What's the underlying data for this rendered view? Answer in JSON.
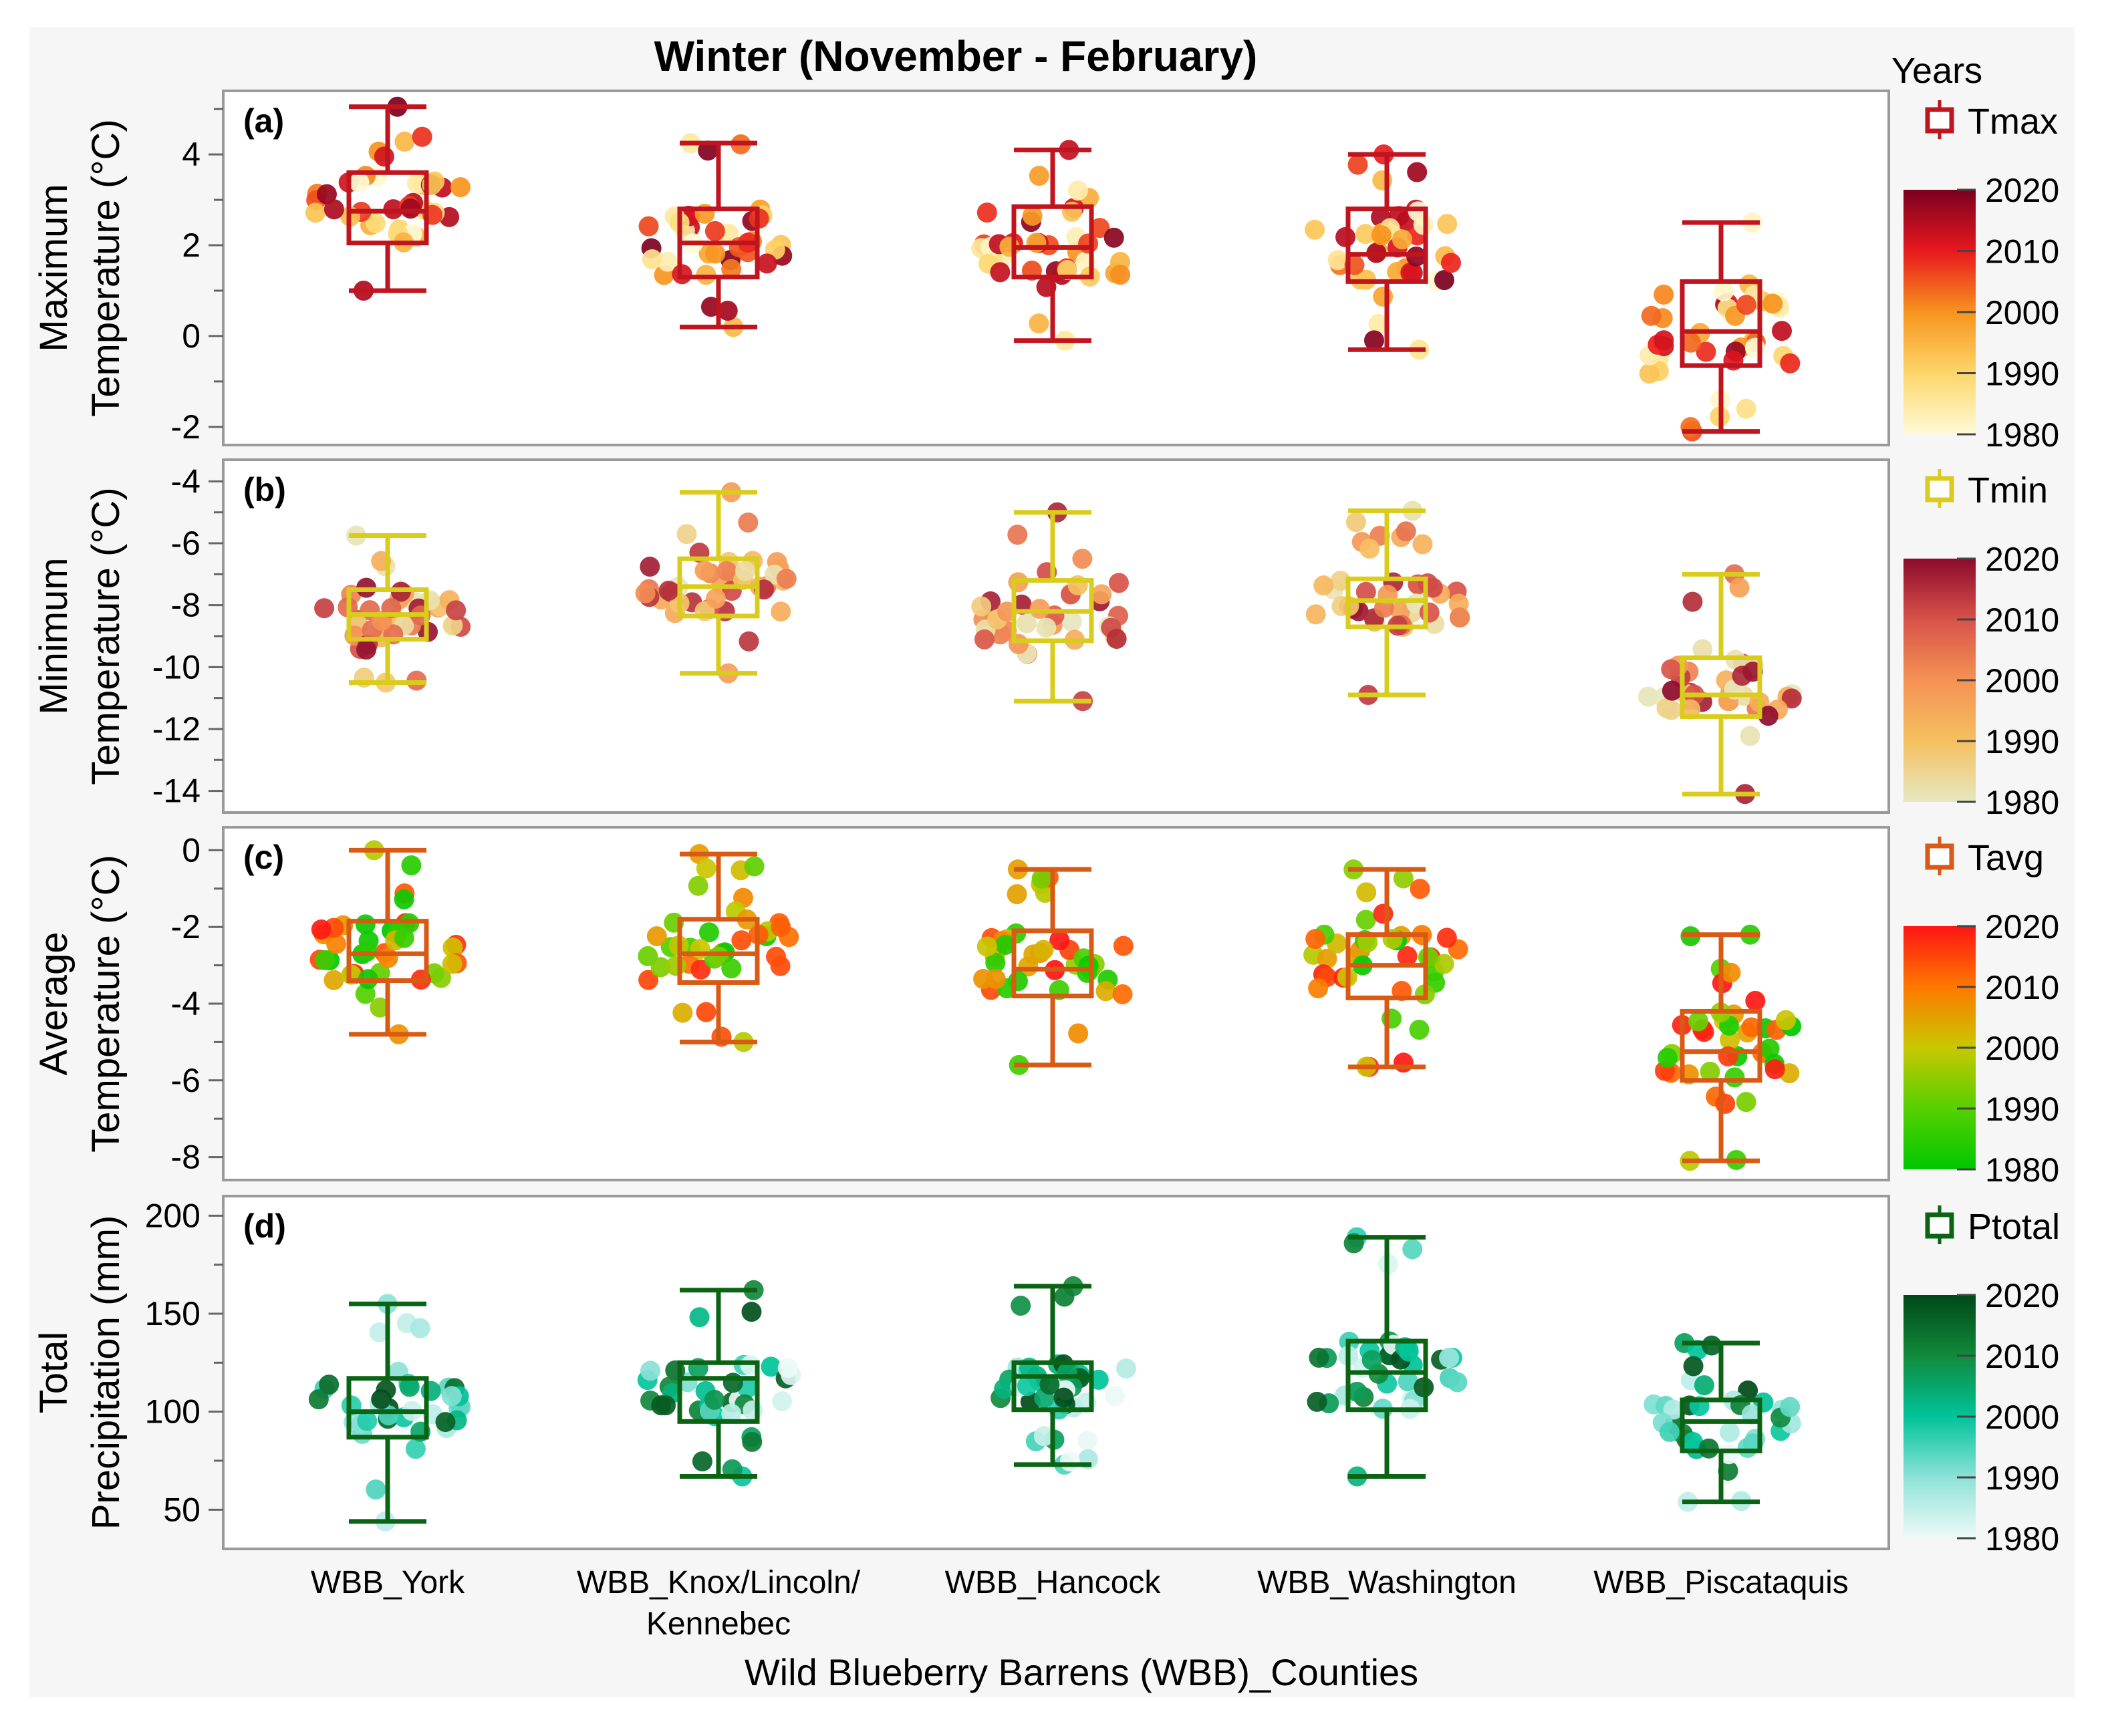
{
  "chart_data": {
    "type": "box",
    "title": "Winter (November - February)",
    "xlabel": "Wild Blueberry Barrens (WBB)_Counties",
    "categories": [
      "WBB_York",
      "WBB_Knox/Lincoln/ Kennebec",
      "WBB_Hancock",
      "WBB_Washington",
      "WBB_Piscataquis"
    ],
    "legend": {
      "title": "Years",
      "placement": "right"
    },
    "panels": [
      {
        "id": "tmax",
        "tag": "(a)",
        "ylabel": [
          "Maximum",
          "Temperature (°C)"
        ],
        "ylim": [
          -2.4,
          5.4
        ],
        "yticks": [
          -2,
          0,
          2,
          4
        ],
        "legend_label": "Tmax",
        "box_color": "#c0141e",
        "colorbar": {
          "ticks": [
            2020,
            2010,
            2000,
            1990,
            1980
          ],
          "colors": [
            "#7a0020",
            "#e8181e",
            "#f7941e",
            "#fdd66a",
            "#fffbd8"
          ]
        },
        "boxes": [
          {
            "min": 1.0,
            "q1": 2.05,
            "median": 2.75,
            "q3": 3.6,
            "max": 5.05
          },
          {
            "min": 0.2,
            "q1": 1.3,
            "median": 2.05,
            "q3": 2.8,
            "max": 4.25
          },
          {
            "min": -0.1,
            "q1": 1.3,
            "median": 1.95,
            "q3": 2.85,
            "max": 4.1
          },
          {
            "min": -0.3,
            "q1": 1.2,
            "median": 1.8,
            "q3": 2.8,
            "max": 4.0
          },
          {
            "min": -2.1,
            "q1": -0.65,
            "median": 0.1,
            "q3": 1.2,
            "max": 2.5
          }
        ]
      },
      {
        "id": "tmin",
        "tag": "(b)",
        "ylabel": [
          "Minimum",
          "Temperature (°C)"
        ],
        "ylim": [
          -14.7,
          -3.3
        ],
        "yticks": [
          -14,
          -12,
          -10,
          -8,
          -6,
          -4
        ],
        "legend_label": "Tmin",
        "box_color": "#d9cc1c",
        "colorbar": {
          "ticks": [
            2020,
            2010,
            2000,
            1990,
            1980
          ],
          "colors": [
            "#8c0a2c",
            "#d8524a",
            "#f59254",
            "#f6c060",
            "#e6e8c0"
          ]
        },
        "boxes": [
          {
            "min": -10.5,
            "q1": -9.1,
            "median": -8.3,
            "q3": -7.5,
            "max": -5.75
          },
          {
            "min": -10.2,
            "q1": -8.35,
            "median": -7.4,
            "q3": -6.5,
            "max": -4.35
          },
          {
            "min": -11.1,
            "q1": -9.15,
            "median": -8.2,
            "q3": -7.2,
            "max": -5.0
          },
          {
            "min": -10.9,
            "q1": -8.7,
            "median": -7.85,
            "q3": -7.15,
            "max": -4.95
          },
          {
            "min": -14.1,
            "q1": -11.6,
            "median": -10.9,
            "q3": -9.7,
            "max": -7.0
          }
        ]
      },
      {
        "id": "tavg",
        "tag": "(c)",
        "ylabel": [
          "Average",
          "Temperature (°C)"
        ],
        "ylim": [
          -8.6,
          0.6
        ],
        "yticks": [
          -8,
          -6,
          -4,
          -2,
          0
        ],
        "legend_label": "Tavg",
        "box_color": "#d85a14",
        "colorbar": {
          "ticks": [
            2020,
            2010,
            2000,
            1990,
            1980
          ],
          "colors": [
            "#ff1414",
            "#ff7800",
            "#c8c800",
            "#55d000",
            "#00c800"
          ]
        },
        "boxes": [
          {
            "min": -4.8,
            "q1": -3.4,
            "median": -2.7,
            "q3": -1.85,
            "max": 0.0
          },
          {
            "min": -5.0,
            "q1": -3.45,
            "median": -2.7,
            "q3": -1.8,
            "max": -0.1
          },
          {
            "min": -5.6,
            "q1": -3.8,
            "median": -3.1,
            "q3": -2.1,
            "max": -0.5
          },
          {
            "min": -5.65,
            "q1": -3.85,
            "median": -3.0,
            "q3": -2.2,
            "max": -0.5
          },
          {
            "min": -8.1,
            "q1": -6.0,
            "median": -5.25,
            "q3": -4.2,
            "max": -2.2
          }
        ]
      },
      {
        "id": "ptotal",
        "tag": "(d)",
        "ylabel": [
          "Total",
          "Precipitation (mm)"
        ],
        "ylim": [
          30,
          210
        ],
        "yticks": [
          50,
          100,
          150,
          200
        ],
        "legend_label": "Ptotal",
        "box_color": "#0a6414",
        "colorbar": {
          "ticks": [
            2020,
            2010,
            2000,
            1990,
            1980
          ],
          "colors": [
            "#004818",
            "#118a3c",
            "#00c49a",
            "#8ee2d8",
            "#eefaf8"
          ]
        },
        "boxes": [
          {
            "min": 44,
            "q1": 87,
            "median": 100,
            "q3": 117,
            "max": 155
          },
          {
            "min": 67,
            "q1": 95,
            "median": 117,
            "q3": 125,
            "max": 162
          },
          {
            "min": 73,
            "q1": 101,
            "median": 118,
            "q3": 125,
            "max": 164
          },
          {
            "min": 67,
            "q1": 101,
            "median": 120,
            "q3": 136,
            "max": 189
          },
          {
            "min": 54,
            "q1": 80,
            "median": 95,
            "q3": 106,
            "max": 135
          }
        ]
      }
    ]
  }
}
